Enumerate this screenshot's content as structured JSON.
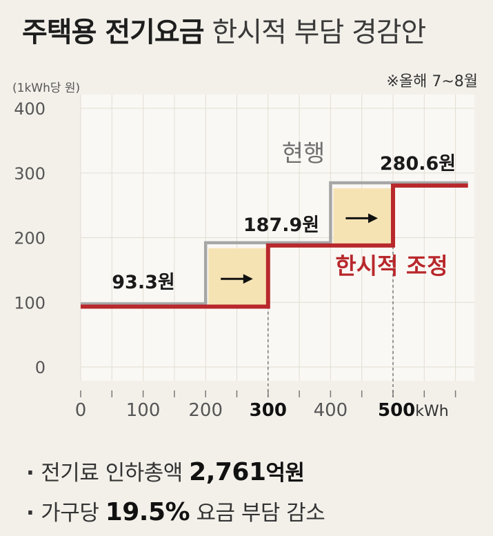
{
  "title": {
    "bold": "주택용 전기요금",
    "light": "한시적 부담 경감안"
  },
  "unit_label": "(1kWh당 원)",
  "note": "※올해 7~8월",
  "colors": {
    "current_line": "#a6a6a6",
    "adjusted_line": "#b8282c",
    "shift_box": "#f6e3b4",
    "grid": "#e2ddd3",
    "plot_bg": "#faf8f4"
  },
  "chart_data": {
    "type": "line",
    "ylim": [
      0,
      400
    ],
    "xlim": [
      0,
      620
    ],
    "yticks": [
      "400",
      "300",
      "200",
      "100",
      "0"
    ],
    "xticks": [
      {
        "value": 0,
        "label": "0",
        "bold": false
      },
      {
        "value": 100,
        "label": "100",
        "bold": false
      },
      {
        "value": 200,
        "label": "200",
        "bold": false
      },
      {
        "value": 300,
        "label": "300",
        "bold": true
      },
      {
        "value": 400,
        "label": "400",
        "bold": false
      },
      {
        "value": 500,
        "label": "500",
        "bold": true
      }
    ],
    "x_unit": "kWh",
    "series": [
      {
        "name": "현행",
        "style": "gray",
        "steps": [
          {
            "from": 0,
            "to": 200,
            "value": 93.3
          },
          {
            "from": 200,
            "to": 400,
            "value": 187.9
          },
          {
            "from": 400,
            "to": 620,
            "value": 280.6
          }
        ]
      },
      {
        "name": "한시적 조정",
        "style": "red",
        "steps": [
          {
            "from": 0,
            "to": 300,
            "value": 93.3
          },
          {
            "from": 300,
            "to": 500,
            "value": 187.9
          },
          {
            "from": 500,
            "to": 620,
            "value": 280.6
          }
        ]
      }
    ],
    "value_labels": [
      "93.3원",
      "187.9원",
      "280.6원"
    ]
  },
  "summary": [
    {
      "prefix": "전기료 인하총액 ",
      "strong": "2,761",
      "suffix": "억원"
    },
    {
      "prefix": "가구당 ",
      "strong": "19.5%",
      "suffix": " 요금 부담 감소"
    }
  ]
}
